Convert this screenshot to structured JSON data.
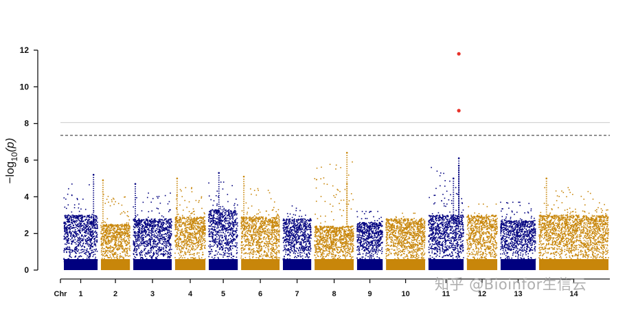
{
  "chart_data": {
    "type": "scatter",
    "subtype": "manhattan",
    "title": "",
    "ylabel_prefix": "−log",
    "ylabel_sub": "10",
    "ylabel_suffix": "(p)",
    "xlabel": "Chr",
    "ylim": [
      0,
      12
    ],
    "yticks": [
      0,
      2,
      4,
      6,
      8,
      10,
      12
    ],
    "grid": false,
    "colors": [
      "#00007f",
      "#c8860a"
    ],
    "highlight_color": "#e8322a",
    "thresholds": [
      {
        "value": 8.05,
        "style": "solid",
        "color": "#cccccc"
      },
      {
        "value": 7.35,
        "style": "dashed",
        "color": "#222222"
      }
    ],
    "chromosomes": [
      {
        "label": "1",
        "start": 0,
        "end": 50,
        "base": 2.6,
        "peak": 5.2
      },
      {
        "label": "2",
        "start": 55,
        "end": 98,
        "base": 2.1,
        "peak": 4.9
      },
      {
        "label": "3",
        "start": 103,
        "end": 160,
        "base": 2.4,
        "peak": 4.7
      },
      {
        "label": "4",
        "start": 165,
        "end": 210,
        "base": 2.5,
        "peak": 5.0
      },
      {
        "label": "5",
        "start": 215,
        "end": 258,
        "base": 2.9,
        "peak": 5.3
      },
      {
        "label": "6",
        "start": 263,
        "end": 320,
        "base": 2.5,
        "peak": 5.1
      },
      {
        "label": "7",
        "start": 325,
        "end": 367,
        "base": 2.4,
        "peak": 4.0
      },
      {
        "label": "8",
        "start": 372,
        "end": 430,
        "base": 2.0,
        "peak": 6.4
      },
      {
        "label": "9",
        "start": 435,
        "end": 473,
        "base": 2.2,
        "peak": 3.7
      },
      {
        "label": "10",
        "start": 478,
        "end": 536,
        "base": 2.4,
        "peak": 3.6
      },
      {
        "label": "11",
        "start": 541,
        "end": 593,
        "base": 2.6,
        "peak": 6.1
      },
      {
        "label": "12",
        "start": 598,
        "end": 643,
        "base": 2.6,
        "peak": 4.1
      },
      {
        "label": "13",
        "start": 648,
        "end": 700,
        "base": 2.3,
        "peak": 4.2
      },
      {
        "label": "14",
        "start": 705,
        "end": 808,
        "base": 2.6,
        "peak": 5.0
      }
    ],
    "highlight_points": [
      {
        "chr": "11",
        "pos": 586,
        "y": 11.8
      },
      {
        "chr": "11",
        "pos": 586,
        "y": 8.7
      }
    ],
    "peaks": [
      {
        "chr": "1",
        "pos": 44,
        "y": 5.2
      },
      {
        "chr": "2",
        "pos": 58,
        "y": 4.9
      },
      {
        "chr": "3",
        "pos": 106,
        "y": 4.7
      },
      {
        "chr": "4",
        "pos": 168,
        "y": 5.0
      },
      {
        "chr": "5",
        "pos": 230,
        "y": 5.3
      },
      {
        "chr": "6",
        "pos": 267,
        "y": 5.1
      },
      {
        "chr": "8",
        "pos": 420,
        "y": 6.4
      },
      {
        "chr": "8",
        "pos": 420,
        "y": 4.7
      },
      {
        "chr": "11",
        "pos": 586,
        "y": 6.1
      },
      {
        "chr": "11",
        "pos": 586,
        "y": 5.7
      },
      {
        "chr": "11",
        "pos": 578,
        "y": 5.0
      },
      {
        "chr": "14",
        "pos": 716,
        "y": 5.0
      }
    ]
  },
  "watermark": "知乎 @Bioinfor生信云"
}
